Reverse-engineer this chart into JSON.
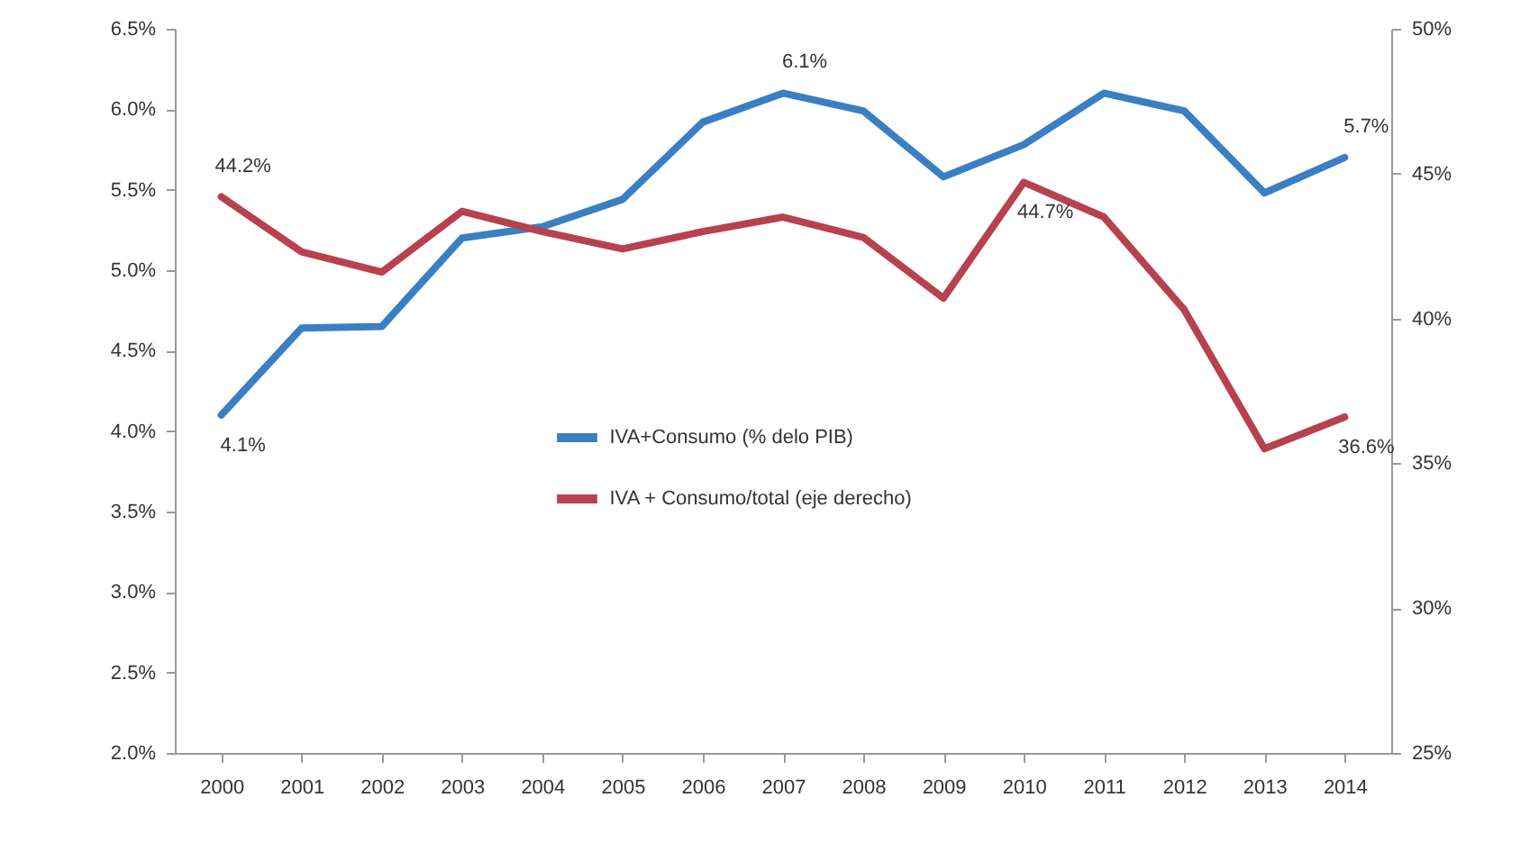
{
  "chart_data": {
    "type": "line",
    "categories": [
      "2000",
      "2001",
      "2002",
      "2003",
      "2004",
      "2005",
      "2006",
      "2007",
      "2008",
      "2009",
      "2010",
      "2011",
      "2012",
      "2013",
      "2014"
    ],
    "series": [
      {
        "name": "IVA+Consumo (% delo PIB)",
        "color": "#3a7fc4",
        "values": [
          4.1,
          4.64,
          4.65,
          5.2,
          5.27,
          5.44,
          5.92,
          6.1,
          5.99,
          5.58,
          5.78,
          6.1,
          5.99,
          5.48,
          5.7
        ],
        "value_labels": [
          "4.1%",
          null,
          null,
          null,
          null,
          null,
          null,
          "6.1%",
          null,
          null,
          null,
          null,
          null,
          null,
          "5.7%"
        ]
      },
      {
        "name": "IVA + Consumo/total (eje derecho)",
        "color": "#b8414f",
        "axis": "y2",
        "values": [
          44.2,
          42.3,
          41.6,
          43.7,
          43.0,
          42.4,
          43.0,
          43.5,
          42.8,
          40.7,
          44.7,
          43.5,
          40.3,
          35.5,
          36.6
        ],
        "value_labels": [
          "44.2%",
          null,
          null,
          null,
          null,
          null,
          null,
          null,
          null,
          null,
          "44.7%",
          null,
          null,
          null,
          "36.6%"
        ]
      }
    ],
    "ylim": [
      2,
      6.5
    ],
    "yticks": [
      {
        "value": 2,
        "label": "2.0%"
      },
      {
        "value": 2.5,
        "label": "2.5%"
      },
      {
        "value": 3,
        "label": "3.0%"
      },
      {
        "value": 3.5,
        "label": "3.5%"
      },
      {
        "value": 4,
        "label": "4.0%"
      },
      {
        "value": 4.5,
        "label": "4.5%"
      },
      {
        "value": 5,
        "label": "5.0%"
      },
      {
        "value": 5.5,
        "label": "5.5%"
      },
      {
        "value": 6,
        "label": "6.0%"
      },
      {
        "value": 6.5,
        "label": "6.5%"
      }
    ],
    "y2lim": [
      25,
      50
    ],
    "y2ticks": [
      {
        "value": 25,
        "label": "25%"
      },
      {
        "value": 30,
        "label": "30%"
      },
      {
        "value": 35,
        "label": "35%"
      },
      {
        "value": 40,
        "label": "40%"
      },
      {
        "value": 45,
        "label": "45%"
      },
      {
        "value": 50,
        "label": "50%"
      }
    ],
    "legend": "center",
    "grid": false,
    "marker": "none",
    "line_style": "solid"
  }
}
